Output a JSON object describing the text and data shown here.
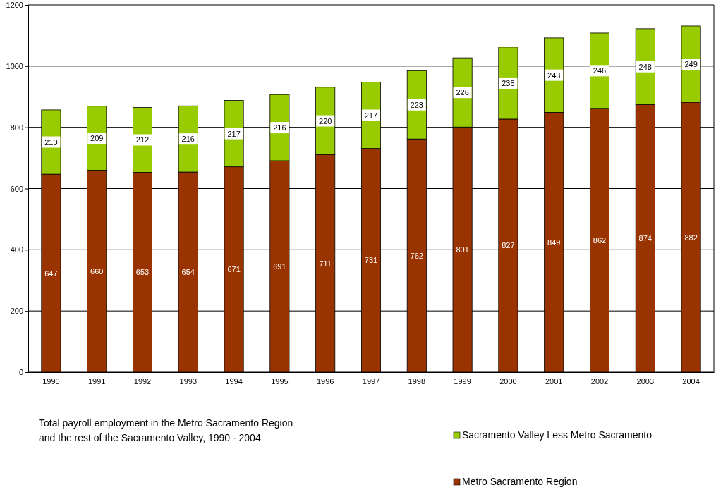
{
  "chart_data": {
    "type": "bar",
    "stacked": true,
    "title": "Total payroll employment in the Metro Sacramento Region\nand the rest of the Sacramento Valley, 1990 - 2004",
    "categories": [
      "1990",
      "1991",
      "1992",
      "1993",
      "1994",
      "1995",
      "1996",
      "1997",
      "1998",
      "1999",
      "2000",
      "2001",
      "2002",
      "2003",
      "2004"
    ],
    "series": [
      {
        "name": "Metro Sacramento Region",
        "color": "#993300",
        "values": [
          647,
          660,
          653,
          654,
          671,
          691,
          711,
          731,
          762,
          801,
          827,
          849,
          862,
          874,
          882
        ]
      },
      {
        "name": "Sacramento Valley Less Metro Sacramento",
        "color": "#99cc00",
        "values": [
          210,
          209,
          212,
          216,
          217,
          216,
          220,
          217,
          223,
          226,
          235,
          243,
          246,
          248,
          249
        ]
      }
    ],
    "ylim": [
      0,
      1200
    ],
    "yticks": [
      0,
      200,
      400,
      600,
      800,
      1000,
      1200
    ],
    "grid": "y",
    "data_labels": true,
    "legend": "bottom right"
  }
}
